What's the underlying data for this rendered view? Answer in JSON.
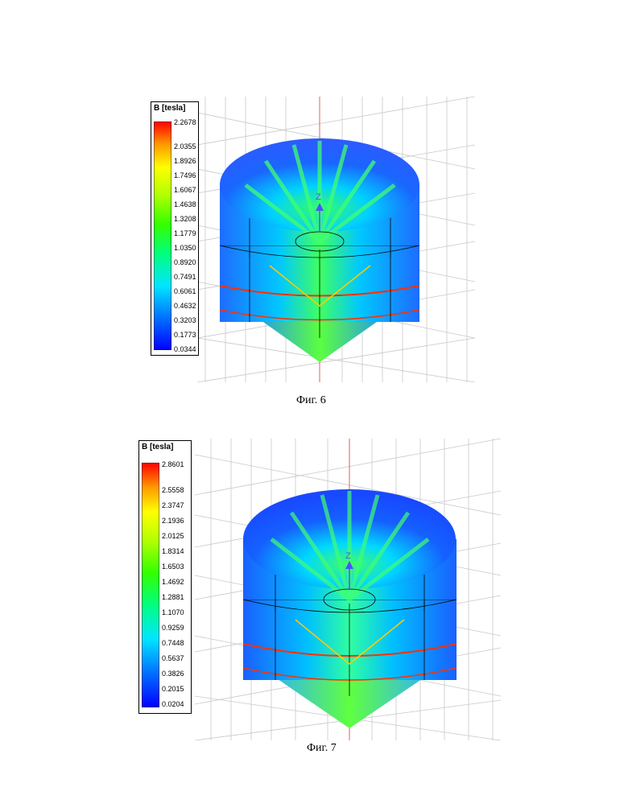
{
  "figures": [
    {
      "caption": "Фиг. 6",
      "legend": {
        "title": "B [tesla]",
        "ticks": [
          "2.2678",
          "2.0355",
          "1.8926",
          "1.7496",
          "1.6067",
          "1.4638",
          "1.3208",
          "1.1779",
          "1.0350",
          "0.8920",
          "0.7491",
          "0.6061",
          "0.4632",
          "0.3203",
          "0.1773",
          "0.0344"
        ]
      },
      "axis_label": "Z"
    },
    {
      "caption": "Фиг. 7",
      "legend": {
        "title": "B [tesla]",
        "ticks": [
          "2.8601",
          "2.5558",
          "2.3747",
          "2.1936",
          "2.0125",
          "1.8314",
          "1.6503",
          "1.4692",
          "1.2881",
          "1.1070",
          "0.9259",
          "0.7448",
          "0.5637",
          "0.3826",
          "0.2015",
          "0.0204"
        ]
      },
      "axis_label": "Z"
    }
  ],
  "colors": {
    "colormap": [
      "#0000ff",
      "#0078ff",
      "#00e5ff",
      "#00ff80",
      "#33ff00",
      "#b2ff00",
      "#ffff00",
      "#ff9900",
      "#ff0000"
    ],
    "grid": "#c8c8c8",
    "axis_z": "#e06060"
  }
}
